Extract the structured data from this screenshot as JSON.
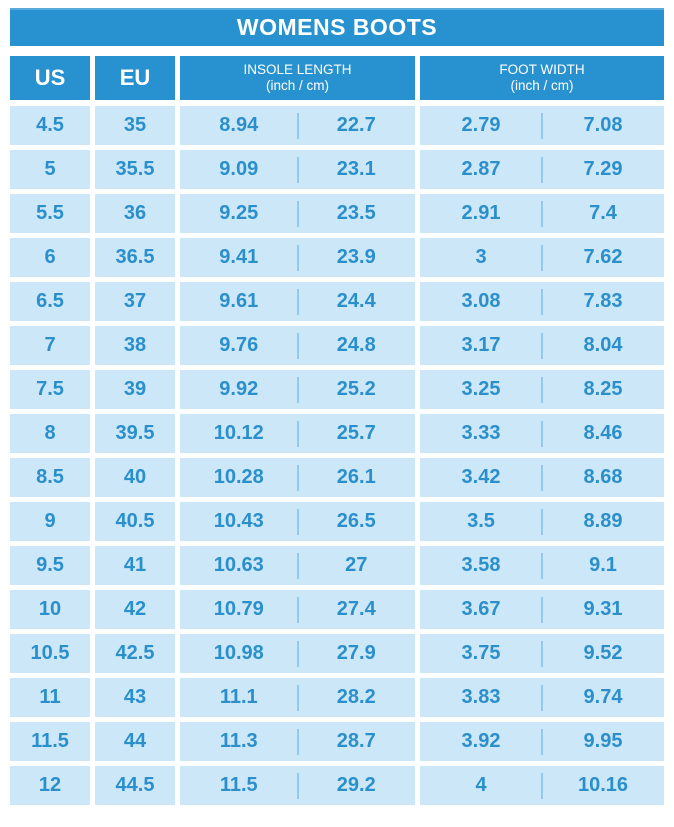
{
  "colors": {
    "header_bg": "#2892d0",
    "cell_bg": "#cbe7f8",
    "cell_text": "#2b8fcb",
    "divider": "#90cbee",
    "header_text": "#ffffff",
    "page_bg": "#ffffff"
  },
  "chart_data": {
    "type": "table",
    "title": "WOMENS BOOTS",
    "column_groups": [
      {
        "label": "US"
      },
      {
        "label": "EU"
      },
      {
        "label": "INSOLE LENGTH",
        "sublabel": "(inch / cm)"
      },
      {
        "label": "FOOT WIDTH",
        "sublabel": "(inch / cm)"
      }
    ],
    "rows": [
      {
        "us": "4.5",
        "eu": "35",
        "insole_inch": "8.94",
        "insole_cm": "22.7",
        "foot_inch": "2.79",
        "foot_cm": "7.08"
      },
      {
        "us": "5",
        "eu": "35.5",
        "insole_inch": "9.09",
        "insole_cm": "23.1",
        "foot_inch": "2.87",
        "foot_cm": "7.29"
      },
      {
        "us": "5.5",
        "eu": "36",
        "insole_inch": "9.25",
        "insole_cm": "23.5",
        "foot_inch": "2.91",
        "foot_cm": "7.4"
      },
      {
        "us": "6",
        "eu": "36.5",
        "insole_inch": "9.41",
        "insole_cm": "23.9",
        "foot_inch": "3",
        "foot_cm": "7.62"
      },
      {
        "us": "6.5",
        "eu": "37",
        "insole_inch": "9.61",
        "insole_cm": "24.4",
        "foot_inch": "3.08",
        "foot_cm": "7.83"
      },
      {
        "us": "7",
        "eu": "38",
        "insole_inch": "9.76",
        "insole_cm": "24.8",
        "foot_inch": "3.17",
        "foot_cm": "8.04"
      },
      {
        "us": "7.5",
        "eu": "39",
        "insole_inch": "9.92",
        "insole_cm": "25.2",
        "foot_inch": "3.25",
        "foot_cm": "8.25"
      },
      {
        "us": "8",
        "eu": "39.5",
        "insole_inch": "10.12",
        "insole_cm": "25.7",
        "foot_inch": "3.33",
        "foot_cm": "8.46"
      },
      {
        "us": "8.5",
        "eu": "40",
        "insole_inch": "10.28",
        "insole_cm": "26.1",
        "foot_inch": "3.42",
        "foot_cm": "8.68"
      },
      {
        "us": "9",
        "eu": "40.5",
        "insole_inch": "10.43",
        "insole_cm": "26.5",
        "foot_inch": "3.5",
        "foot_cm": "8.89"
      },
      {
        "us": "9.5",
        "eu": "41",
        "insole_inch": "10.63",
        "insole_cm": "27",
        "foot_inch": "3.58",
        "foot_cm": "9.1"
      },
      {
        "us": "10",
        "eu": "42",
        "insole_inch": "10.79",
        "insole_cm": "27.4",
        "foot_inch": "3.67",
        "foot_cm": "9.31"
      },
      {
        "us": "10.5",
        "eu": "42.5",
        "insole_inch": "10.98",
        "insole_cm": "27.9",
        "foot_inch": "3.75",
        "foot_cm": "9.52"
      },
      {
        "us": "11",
        "eu": "43",
        "insole_inch": "11.1",
        "insole_cm": "28.2",
        "foot_inch": "3.83",
        "foot_cm": "9.74"
      },
      {
        "us": "11.5",
        "eu": "44",
        "insole_inch": "11.3",
        "insole_cm": "28.7",
        "foot_inch": "3.92",
        "foot_cm": "9.95"
      },
      {
        "us": "12",
        "eu": "44.5",
        "insole_inch": "11.5",
        "insole_cm": "29.2",
        "foot_inch": "4",
        "foot_cm": "10.16"
      }
    ]
  }
}
